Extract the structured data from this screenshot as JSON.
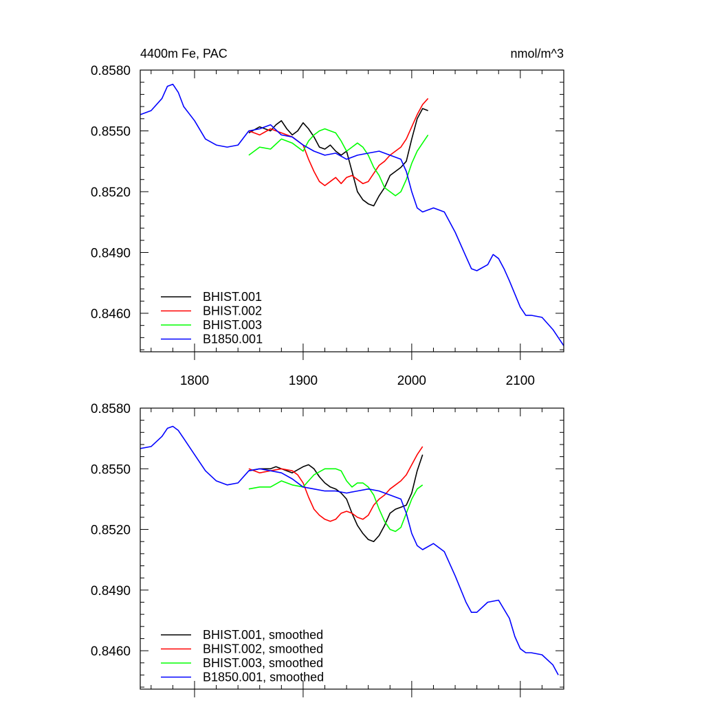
{
  "chart_data": [
    {
      "type": "line",
      "title_left": "4400m Fe, PAC",
      "title_right": "nmol/m^3",
      "xlim": [
        1750,
        2140
      ],
      "ylim": [
        0.8441,
        0.858
      ],
      "x_ticks": [
        1800,
        1900,
        2000,
        2100
      ],
      "x_tick_labels": [
        "1800",
        "1900",
        "2000",
        "2100"
      ],
      "y_ticks": [
        0.858,
        0.855,
        0.852,
        0.849,
        0.846
      ],
      "y_tick_labels": [
        "0.8580",
        "0.8550",
        "0.8520",
        "0.8490",
        "0.8460"
      ],
      "legend_position": "bottom-left",
      "series": [
        {
          "name": "BHIST.001",
          "color": "#000000",
          "x": [
            1850,
            1860,
            1870,
            1875,
            1880,
            1885,
            1890,
            1895,
            1900,
            1905,
            1910,
            1915,
            1920,
            1925,
            1930,
            1935,
            1940,
            1945,
            1950,
            1955,
            1960,
            1965,
            1970,
            1975,
            1980,
            1985,
            1990,
            1995,
            2000,
            2005,
            2010,
            2015
          ],
          "y": [
            0.8549,
            0.8552,
            0.855,
            0.8553,
            0.8555,
            0.8551,
            0.8548,
            0.855,
            0.8554,
            0.8551,
            0.8547,
            0.8542,
            0.8541,
            0.8543,
            0.854,
            0.8538,
            0.854,
            0.853,
            0.852,
            0.8516,
            0.8514,
            0.8513,
            0.8518,
            0.8522,
            0.8528,
            0.853,
            0.8532,
            0.8535,
            0.8546,
            0.8556,
            0.8561,
            0.856
          ]
        },
        {
          "name": "BHIST.002",
          "color": "#ff0000",
          "x": [
            1850,
            1860,
            1870,
            1880,
            1890,
            1900,
            1905,
            1910,
            1915,
            1920,
            1925,
            1930,
            1935,
            1940,
            1945,
            1950,
            1955,
            1960,
            1965,
            1970,
            1975,
            1980,
            1985,
            1990,
            1995,
            2000,
            2005,
            2010,
            2015
          ],
          "y": [
            0.855,
            0.8548,
            0.8551,
            0.8549,
            0.8547,
            0.8543,
            0.8536,
            0.853,
            0.8525,
            0.8523,
            0.8525,
            0.8527,
            0.8524,
            0.8527,
            0.8528,
            0.8526,
            0.8524,
            0.8525,
            0.8529,
            0.8533,
            0.8535,
            0.8538,
            0.854,
            0.8542,
            0.8546,
            0.8552,
            0.8558,
            0.8563,
            0.8566
          ]
        },
        {
          "name": "BHIST.003",
          "color": "#00ff00",
          "x": [
            1850,
            1860,
            1870,
            1880,
            1890,
            1900,
            1905,
            1910,
            1915,
            1920,
            1925,
            1930,
            1935,
            1940,
            1945,
            1950,
            1955,
            1960,
            1965,
            1970,
            1975,
            1980,
            1985,
            1990,
            1995,
            2000,
            2005,
            2010,
            2015
          ],
          "y": [
            0.8538,
            0.8542,
            0.8541,
            0.8546,
            0.8544,
            0.854,
            0.8545,
            0.8548,
            0.855,
            0.8551,
            0.855,
            0.8549,
            0.8545,
            0.854,
            0.8542,
            0.8544,
            0.8542,
            0.8538,
            0.8532,
            0.8528,
            0.8522,
            0.852,
            0.8518,
            0.852,
            0.8526,
            0.8534,
            0.854,
            0.8544,
            0.8548
          ]
        },
        {
          "name": "B1850.001",
          "color": "#0000ff",
          "x": [
            1750,
            1760,
            1770,
            1775,
            1780,
            1785,
            1790,
            1800,
            1810,
            1820,
            1830,
            1840,
            1850,
            1860,
            1870,
            1880,
            1890,
            1900,
            1910,
            1920,
            1930,
            1940,
            1950,
            1960,
            1970,
            1980,
            1990,
            1995,
            2000,
            2005,
            2010,
            2020,
            2030,
            2040,
            2050,
            2055,
            2060,
            2070,
            2075,
            2080,
            2085,
            2090,
            2100,
            2105,
            2110,
            2120,
            2130,
            2140
          ],
          "y": [
            0.8558,
            0.856,
            0.8566,
            0.8572,
            0.8573,
            0.8569,
            0.8562,
            0.8555,
            0.8546,
            0.8543,
            0.8542,
            0.8543,
            0.855,
            0.8551,
            0.8553,
            0.8548,
            0.8547,
            0.8543,
            0.854,
            0.8538,
            0.8539,
            0.8536,
            0.8538,
            0.8539,
            0.854,
            0.8538,
            0.8536,
            0.853,
            0.852,
            0.8512,
            0.851,
            0.8512,
            0.851,
            0.85,
            0.8488,
            0.8482,
            0.8481,
            0.8484,
            0.8489,
            0.8487,
            0.8482,
            0.8476,
            0.8463,
            0.8459,
            0.8459,
            0.8458,
            0.8452,
            0.8444
          ]
        }
      ]
    },
    {
      "type": "line",
      "xlim": [
        1750,
        2140
      ],
      "ylim": [
        0.8441,
        0.858
      ],
      "x_ticks": [
        1800,
        1900,
        2000,
        2100
      ],
      "y_ticks": [
        0.858,
        0.855,
        0.852,
        0.849,
        0.846
      ],
      "y_tick_labels": [
        "0.8580",
        "0.8550",
        "0.8520",
        "0.8490",
        "0.8460"
      ],
      "legend_position": "bottom-left",
      "series": [
        {
          "name": "BHIST.001, smoothed",
          "color": "#000000",
          "x": [
            1850,
            1860,
            1870,
            1875,
            1880,
            1890,
            1900,
            1905,
            1910,
            1915,
            1920,
            1925,
            1930,
            1935,
            1940,
            1945,
            1950,
            1955,
            1960,
            1965,
            1970,
            1975,
            1980,
            1985,
            1990,
            1995,
            2000,
            2005,
            2010
          ],
          "y": [
            0.8549,
            0.855,
            0.855,
            0.8551,
            0.855,
            0.8548,
            0.8551,
            0.8552,
            0.855,
            0.8546,
            0.8543,
            0.8541,
            0.854,
            0.8538,
            0.8535,
            0.8528,
            0.8522,
            0.8518,
            0.8515,
            0.8514,
            0.8517,
            0.8522,
            0.8528,
            0.853,
            0.8531,
            0.8532,
            0.8538,
            0.8549,
            0.8557
          ]
        },
        {
          "name": "BHIST.002, smoothed",
          "color": "#ff0000",
          "x": [
            1850,
            1860,
            1870,
            1880,
            1890,
            1895,
            1900,
            1905,
            1910,
            1915,
            1920,
            1925,
            1930,
            1935,
            1940,
            1945,
            1950,
            1955,
            1960,
            1965,
            1970,
            1975,
            1980,
            1985,
            1990,
            1995,
            2000,
            2005,
            2010
          ],
          "y": [
            0.855,
            0.8548,
            0.8549,
            0.855,
            0.8549,
            0.8547,
            0.8543,
            0.8536,
            0.853,
            0.8527,
            0.8525,
            0.8524,
            0.8525,
            0.8528,
            0.8529,
            0.8528,
            0.8526,
            0.8525,
            0.8527,
            0.8532,
            0.8535,
            0.8537,
            0.854,
            0.8542,
            0.8544,
            0.8547,
            0.8552,
            0.8557,
            0.8561
          ]
        },
        {
          "name": "BHIST.003, smoothed",
          "color": "#00ff00",
          "x": [
            1850,
            1860,
            1870,
            1880,
            1890,
            1900,
            1905,
            1910,
            1920,
            1930,
            1935,
            1940,
            1945,
            1950,
            1955,
            1960,
            1965,
            1970,
            1975,
            1980,
            1985,
            1990,
            1995,
            2000,
            2005,
            2010
          ],
          "y": [
            0.854,
            0.8541,
            0.8541,
            0.8544,
            0.8542,
            0.8541,
            0.8544,
            0.8547,
            0.855,
            0.855,
            0.8549,
            0.8544,
            0.8541,
            0.8543,
            0.8543,
            0.8541,
            0.8537,
            0.853,
            0.8524,
            0.852,
            0.8519,
            0.8521,
            0.8528,
            0.8535,
            0.854,
            0.8542
          ]
        },
        {
          "name": "B1850.001, smoothed",
          "color": "#0000ff",
          "x": [
            1750,
            1760,
            1770,
            1775,
            1780,
            1785,
            1790,
            1800,
            1810,
            1820,
            1830,
            1840,
            1850,
            1860,
            1870,
            1880,
            1890,
            1900,
            1910,
            1920,
            1930,
            1940,
            1950,
            1960,
            1970,
            1980,
            1990,
            1995,
            2000,
            2005,
            2010,
            2020,
            2030,
            2040,
            2050,
            2055,
            2060,
            2070,
            2080,
            2090,
            2095,
            2100,
            2105,
            2110,
            2120,
            2130,
            2135
          ],
          "y": [
            0.856,
            0.8561,
            0.8566,
            0.857,
            0.8571,
            0.8569,
            0.8565,
            0.8557,
            0.8549,
            0.8544,
            0.8542,
            0.8543,
            0.8549,
            0.855,
            0.8549,
            0.8548,
            0.8545,
            0.8541,
            0.854,
            0.8539,
            0.8539,
            0.8538,
            0.8539,
            0.854,
            0.8539,
            0.8537,
            0.8535,
            0.8528,
            0.8518,
            0.8512,
            0.851,
            0.8513,
            0.8509,
            0.8497,
            0.8484,
            0.8479,
            0.8479,
            0.8484,
            0.8485,
            0.8476,
            0.8467,
            0.8461,
            0.8459,
            0.8459,
            0.8458,
            0.8453,
            0.8448
          ]
        }
      ]
    }
  ]
}
